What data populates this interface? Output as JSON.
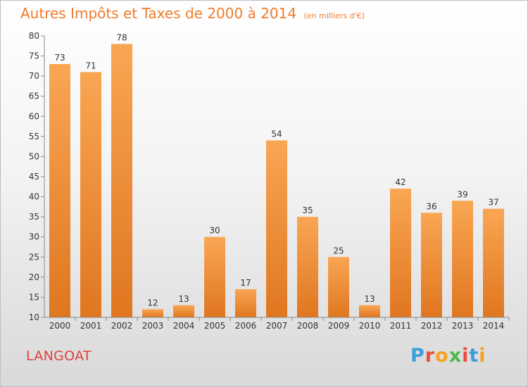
{
  "title": "Autres Impôts et Taxes de 2000 à 2014",
  "unit_label": "(en milliers d'€)",
  "place_name": "LANGOAT",
  "logo": {
    "letters": [
      "P",
      "r",
      "o",
      "x",
      "i",
      "t",
      "i"
    ],
    "colors": [
      "#3aa0d8",
      "#e84e3c",
      "#f6a21e",
      "#4ab84a",
      "#e84e3c",
      "#3aa0d8",
      "#f6a21e"
    ]
  },
  "colors": {
    "bar_top": "#f9a653",
    "bar_bottom": "#e07620",
    "accent": "#f07c2c"
  },
  "chart_data": {
    "type": "bar",
    "categories": [
      "2000",
      "2001",
      "2002",
      "2003",
      "2004",
      "2005",
      "2006",
      "2007",
      "2008",
      "2009",
      "2010",
      "2011",
      "2012",
      "2013",
      "2014"
    ],
    "values": [
      73,
      71,
      78,
      12,
      13,
      30,
      17,
      54,
      35,
      25,
      13,
      42,
      36,
      39,
      37
    ],
    "data_labels": [
      "73",
      "71",
      "78",
      "12",
      "13",
      "30",
      "17",
      "54",
      "35",
      "25",
      "13",
      "42",
      "36",
      "39",
      "37"
    ],
    "y_ticks": [
      "10",
      "15",
      "20",
      "25",
      "30",
      "35",
      "40",
      "45",
      "50",
      "55",
      "60",
      "65",
      "70",
      "75",
      "80"
    ],
    "ylim": [
      10,
      80
    ],
    "grid": false,
    "legend": "none"
  }
}
